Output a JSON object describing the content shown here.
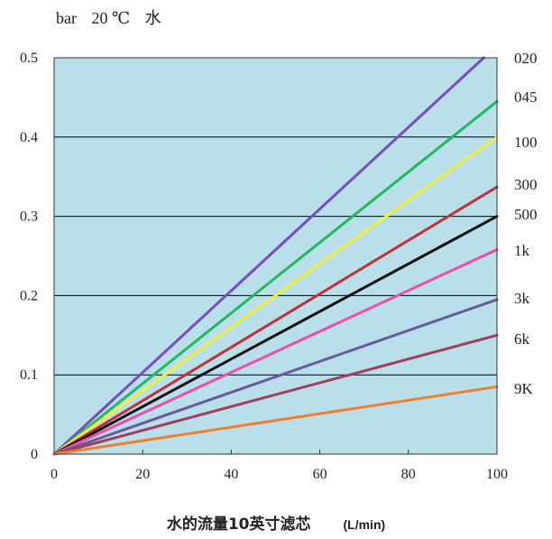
{
  "header": {
    "unit": "bar",
    "temperature": "20 ℃",
    "medium": "水"
  },
  "footer": {
    "title": "水的流量10英寸滤芯",
    "unit": "(L/min)"
  },
  "colors": {
    "plot_background": "#b9dfea",
    "grid": "#000000"
  },
  "chart_data": {
    "type": "line",
    "xlim": [
      0,
      100
    ],
    "ylim": [
      0,
      0.5
    ],
    "x_ticks": [
      "0",
      "20",
      "40",
      "60",
      "80",
      "100"
    ],
    "y_ticks": [
      "0",
      "0.1",
      "0.2",
      "0.3",
      "0.4",
      "0.5"
    ],
    "grid": "horizontal",
    "legend": "right",
    "series": [
      {
        "name": "020",
        "color": "#7a4bbd",
        "x": [
          0,
          97
        ],
        "y": [
          0,
          0.5
        ]
      },
      {
        "name": "045",
        "color": "#22b85f",
        "x": [
          0,
          100
        ],
        "y": [
          0,
          0.445
        ]
      },
      {
        "name": "100",
        "color": "#f2ef3a",
        "x": [
          0,
          100
        ],
        "y": [
          0,
          0.4
        ]
      },
      {
        "name": "300",
        "color": "#c0303a",
        "x": [
          0,
          100
        ],
        "y": [
          0,
          0.337
        ]
      },
      {
        "name": "500",
        "color": "#111111",
        "x": [
          0,
          100
        ],
        "y": [
          0,
          0.3
        ]
      },
      {
        "name": "1k",
        "color": "#ec4fa6",
        "x": [
          0,
          100
        ],
        "y": [
          0,
          0.258
        ]
      },
      {
        "name": "3k",
        "color": "#6a5a9a",
        "x": [
          0,
          100
        ],
        "y": [
          0,
          0.195
        ]
      },
      {
        "name": "6k",
        "color": "#a0405c",
        "x": [
          0,
          100
        ],
        "y": [
          0,
          0.15
        ]
      },
      {
        "name": "9K",
        "color": "#f08030",
        "x": [
          0,
          100
        ],
        "y": [
          0,
          0.085
        ]
      }
    ]
  }
}
